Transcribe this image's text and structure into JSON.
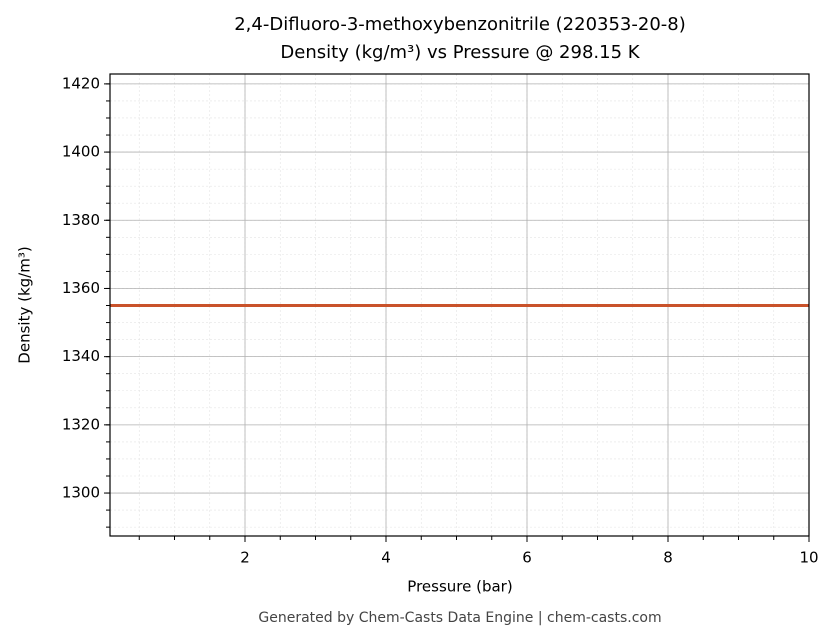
{
  "chart_data": {
    "type": "line",
    "title": "2,4-Difluoro-3-methoxybenzonitrile (220353-20-8)",
    "subtitle": "Density (kg/m³) vs Pressure @ 298.15 K",
    "x_label": "Pressure (bar)",
    "y_label": "Density (kg/m³)",
    "annotation": "Generated by Chem-Casts Data Engine | chem-casts.com",
    "x": [
      0.085,
      10
    ],
    "series": [
      {
        "name": "Density",
        "color": "#c9522a",
        "values": [
          1355,
          1355
        ]
      }
    ],
    "xlim": [
      0.085,
      10
    ],
    "xticks": [
      2,
      4,
      6,
      8,
      10
    ],
    "ylim": [
      1287.4,
      1422.9
    ],
    "yticks": [
      1300,
      1320,
      1340,
      1360,
      1380,
      1400,
      1420
    ],
    "grid": true,
    "minor_grid": true
  }
}
